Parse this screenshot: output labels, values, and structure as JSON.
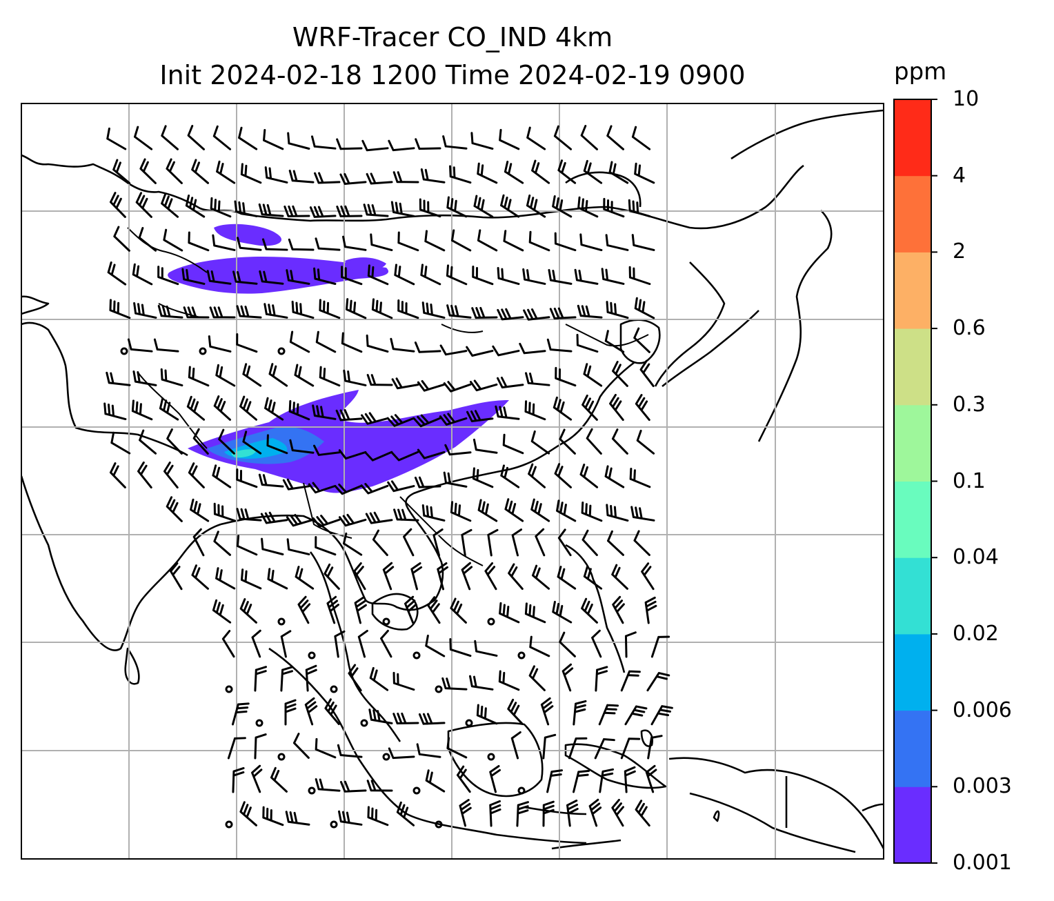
{
  "title": {
    "line1": "WRF-Tracer CO_IND 4km",
    "line2": "Init 2024-02-18 1200 Time 2024-02-19 0900"
  },
  "colorbar": {
    "unit": "ppm",
    "levels": [
      "0.001",
      "0.003",
      "0.006",
      "0.02",
      "0.04",
      "0.1",
      "0.3",
      "0.6",
      "2",
      "4",
      "10"
    ],
    "colors": [
      "#6a2dff",
      "#3473f3",
      "#00b0ee",
      "#33e0d4",
      "#69fcbe",
      "#9ef79b",
      "#cde087",
      "#fdb065",
      "#fe7139",
      "#ff2b18"
    ]
  },
  "plume_colors": {
    "low": "#6a2dff",
    "mid": "#3473f3",
    "high": "#00b0ee",
    "peak": "#33e0d4"
  },
  "map": {
    "line_color": "#000000",
    "grid_color": "#b0b0b0",
    "features": [
      "coastlines",
      "country-borders",
      "wind-barbs",
      "co-tracer-plume",
      "gridlines"
    ]
  }
}
